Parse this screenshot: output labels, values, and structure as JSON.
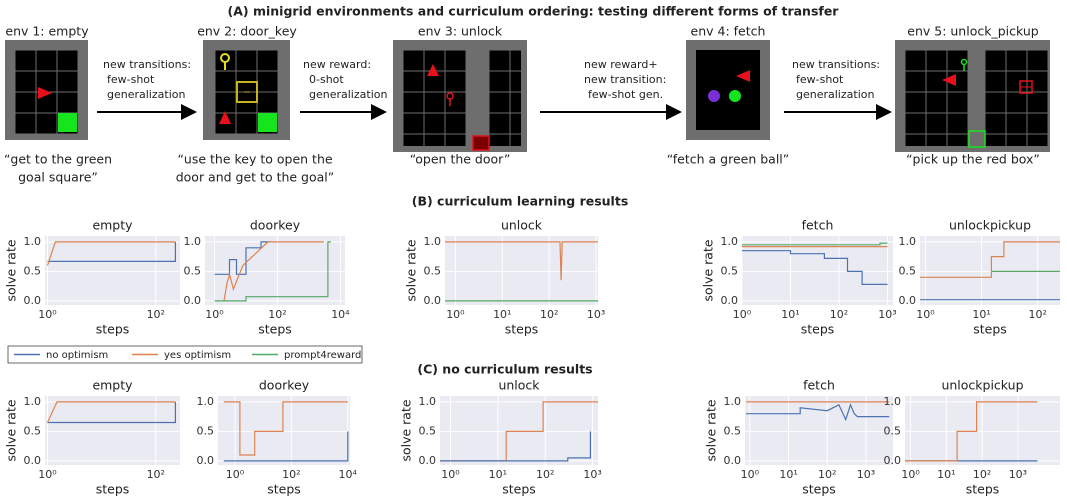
{
  "title": "(A) minigrid environments and curriculum ordering: testing different forms of transfer",
  "envs": [
    {
      "label": "env 1: empty",
      "quote": [
        "“get to the green",
        "goal square”"
      ]
    },
    {
      "label": "env 2: door_key",
      "quote": [
        "“use the key to open the",
        "door and get to the goal”"
      ]
    },
    {
      "label": "env 3: unlock",
      "quote": [
        "“open the door”"
      ]
    },
    {
      "label": "env 4: fetch",
      "quote": [
        "“fetch a green ball”"
      ]
    },
    {
      "label": "env 5: unlock_pickup",
      "quote": [
        "“pick up the red box”"
      ]
    }
  ],
  "transitions": [
    [
      "new transitions:",
      "few-shot",
      "generalization"
    ],
    [
      "new reward:",
      "0-shot",
      "generalization"
    ],
    [
      "new reward+",
      "new transition:",
      "few-shot gen."
    ],
    [
      "new transitions:",
      "few-shot",
      "generalization"
    ]
  ],
  "sections": [
    "(B) curriculum learning results",
    "(C) no curriculum results"
  ],
  "legend": [
    {
      "name": "no optimism",
      "color": "#4c72b0"
    },
    {
      "name": "yes optimism",
      "color": "#dd8452"
    },
    {
      "name": "prompt4reward",
      "color": "#55a868"
    }
  ],
  "chart_data": [
    {
      "type": "line",
      "title": "empty",
      "x_label": "steps",
      "y_label": "solve rate",
      "log_x": true,
      "grid": true,
      "xlim": [
        0.9,
        280
      ],
      "ylim": [
        -0.07,
        1.1
      ],
      "xticks": [
        {
          "value": 1,
          "label": "10⁰"
        },
        {
          "value": 100,
          "label": "10²"
        }
      ],
      "yticks": [
        {
          "value": 0,
          "label": "0.0"
        },
        {
          "value": 0.5,
          "label": "0.5"
        },
        {
          "value": 1,
          "label": "1.0"
        }
      ],
      "series": [
        {
          "color": "#4c72b0",
          "x": [
            1,
            230,
            230
          ],
          "values": [
            0.67,
            0.67,
            1.0
          ]
        },
        {
          "color": "#dd8452",
          "x": [
            1,
            1.4,
            230
          ],
          "values": [
            0.6,
            1.0,
            1.0
          ]
        }
      ]
    },
    {
      "type": "line",
      "title": "doorkey",
      "x_label": "steps",
      "log_x": true,
      "grid": true,
      "xlim": [
        0.5,
        14000
      ],
      "ylim": [
        -0.07,
        1.1
      ],
      "xticks": [
        {
          "value": 1,
          "label": "10⁰"
        },
        {
          "value": 100,
          "label": "10²"
        },
        {
          "value": 10000,
          "label": "10⁴"
        }
      ],
      "yticks": [
        {
          "value": 0,
          "label": "0.0"
        },
        {
          "value": 0.5,
          "label": "0.5"
        },
        {
          "value": 1,
          "label": "1.0"
        }
      ],
      "series": [
        {
          "color": "#4c72b0",
          "x": [
            1,
            3,
            3,
            5,
            5,
            10,
            10,
            30,
            30,
            60
          ],
          "values": [
            0.45,
            0.45,
            0.7,
            0.7,
            0.45,
            0.45,
            0.9,
            0.9,
            1.0,
            1.0
          ]
        },
        {
          "color": "#dd8452",
          "x": [
            2,
            2.5,
            3,
            4,
            8,
            20,
            50,
            3000
          ],
          "values": [
            0,
            0.3,
            0.45,
            0.2,
            0.6,
            0.8,
            1.0,
            1.0
          ]
        },
        {
          "color": "#55a868",
          "x": [
            1,
            10,
            10,
            4000,
            4000,
            5000
          ],
          "values": [
            0,
            0,
            0.07,
            0.07,
            1.0,
            1.0
          ]
        }
      ]
    },
    {
      "type": "line",
      "title": "unlock",
      "x_label": "steps",
      "y_label": "solve rate",
      "log_x": true,
      "grid": true,
      "xlim": [
        0.6,
        1100
      ],
      "ylim": [
        -0.07,
        1.1
      ],
      "xticks": [
        {
          "value": 1,
          "label": "10⁰"
        },
        {
          "value": 10,
          "label": "10¹"
        },
        {
          "value": 100,
          "label": "10²"
        },
        {
          "value": 1000,
          "label": "10³"
        }
      ],
      "yticks": [
        {
          "value": 0,
          "label": "0.0"
        },
        {
          "value": 0.5,
          "label": "0.5"
        },
        {
          "value": 1,
          "label": "1.0"
        }
      ],
      "series": [
        {
          "color": "#dd8452",
          "x": [
            0.6,
            170,
            180,
            190,
            1100
          ],
          "values": [
            1.0,
            1.0,
            0.35,
            1.0,
            1.0
          ]
        },
        {
          "color": "#55a868",
          "x": [
            0.6,
            1100
          ],
          "values": [
            0,
            0
          ]
        }
      ]
    },
    {
      "type": "line",
      "title": "fetch",
      "x_label": "steps",
      "y_label": "solve rate",
      "log_x": true,
      "grid": true,
      "xlim": [
        1,
        1300
      ],
      "ylim": [
        -0.07,
        1.1
      ],
      "xticks": [
        {
          "value": 1,
          "label": "10⁰"
        },
        {
          "value": 10,
          "label": "10¹"
        },
        {
          "value": 100,
          "label": "10²"
        },
        {
          "value": 1000,
          "label": "10³"
        }
      ],
      "yticks": [
        {
          "value": 0,
          "label": "0.0"
        },
        {
          "value": 0.5,
          "label": "0.5"
        },
        {
          "value": 1,
          "label": "1.0"
        }
      ],
      "series": [
        {
          "color": "#dd8452",
          "x": [
            1,
            1000
          ],
          "values": [
            0.92,
            0.92
          ]
        },
        {
          "color": "#55a868",
          "x": [
            1,
            700,
            700,
            1000
          ],
          "values": [
            0.95,
            0.95,
            0.98,
            0.98
          ]
        },
        {
          "color": "#4c72b0",
          "x": [
            1,
            10,
            10,
            50,
            50,
            150,
            150,
            300,
            300,
            1000
          ],
          "values": [
            0.85,
            0.85,
            0.8,
            0.8,
            0.72,
            0.72,
            0.5,
            0.5,
            0.28,
            0.28
          ]
        }
      ]
    },
    {
      "type": "line",
      "title": "unlockpickup",
      "x_label": "steps",
      "log_x": true,
      "grid": true,
      "xlim": [
        0.8,
        250
      ],
      "ylim": [
        -0.07,
        1.1
      ],
      "xticks": [
        {
          "value": 1,
          "label": "10⁰"
        },
        {
          "value": 10,
          "label": "10¹"
        },
        {
          "value": 100,
          "label": "10²"
        }
      ],
      "yticks": [
        {
          "value": 0,
          "label": "0.0"
        },
        {
          "value": 0.5,
          "label": "0.5"
        },
        {
          "value": 1,
          "label": "1.0"
        }
      ],
      "series": [
        {
          "color": "#4c72b0",
          "x": [
            0.8,
            250
          ],
          "values": [
            0.02,
            0.02
          ]
        },
        {
          "color": "#55a868",
          "x": [
            15,
            250
          ],
          "values": [
            0.5,
            0.5
          ]
        },
        {
          "color": "#dd8452",
          "x": [
            0.8,
            15,
            15,
            25,
            25,
            250
          ],
          "values": [
            0.4,
            0.4,
            0.75,
            0.75,
            1.0,
            1.0
          ]
        }
      ]
    },
    {
      "type": "line",
      "title": "empty",
      "x_label": "steps",
      "y_label": "solve rate",
      "log_x": true,
      "grid": true,
      "xlim": [
        0.9,
        280
      ],
      "ylim": [
        -0.07,
        1.1
      ],
      "xticks": [
        {
          "value": 1,
          "label": "10⁰"
        },
        {
          "value": 100,
          "label": "10²"
        }
      ],
      "yticks": [
        {
          "value": 0,
          "label": "0.0"
        },
        {
          "value": 0.5,
          "label": "0.5"
        },
        {
          "value": 1,
          "label": "1.0"
        }
      ],
      "series": [
        {
          "color": "#4c72b0",
          "x": [
            1,
            230,
            230
          ],
          "values": [
            0.65,
            0.65,
            1.0
          ]
        },
        {
          "color": "#dd8452",
          "x": [
            1,
            1.5,
            230
          ],
          "values": [
            0.65,
            1.0,
            1.0
          ]
        }
      ]
    },
    {
      "type": "line",
      "title": "doorkey",
      "x_label": "steps",
      "log_x": true,
      "grid": true,
      "xlim": [
        0.25,
        12000
      ],
      "ylim": [
        -0.07,
        1.1
      ],
      "xticks": [
        {
          "value": 1,
          "label": "10⁰"
        },
        {
          "value": 100,
          "label": "10²"
        },
        {
          "value": 10000,
          "label": "10⁴"
        }
      ],
      "yticks": [
        {
          "value": 0,
          "label": "0.0"
        },
        {
          "value": 0.5,
          "label": "0.5"
        },
        {
          "value": 1,
          "label": "1.0"
        }
      ],
      "series": [
        {
          "color": "#dd8452",
          "x": [
            0.4,
            1.5,
            1.5,
            5,
            5,
            50,
            50,
            10000
          ],
          "values": [
            1.0,
            1.0,
            0.1,
            0.1,
            0.5,
            0.5,
            1.0,
            1.0
          ]
        },
        {
          "color": "#4c72b0",
          "x": [
            0.4,
            10000,
            10000
          ],
          "values": [
            0,
            0,
            0.5
          ]
        }
      ]
    },
    {
      "type": "line",
      "title": "unlock",
      "x_label": "steps",
      "y_label": "solve rate",
      "log_x": true,
      "grid": true,
      "xlim": [
        0.6,
        1300
      ],
      "ylim": [
        -0.07,
        1.1
      ],
      "xticks": [
        {
          "value": 1,
          "label": "10⁰"
        },
        {
          "value": 10,
          "label": "10¹"
        },
        {
          "value": 100,
          "label": "10²"
        },
        {
          "value": 1000,
          "label": "10³"
        }
      ],
      "yticks": [
        {
          "value": 0,
          "label": "0.0"
        },
        {
          "value": 0.5,
          "label": "0.5"
        },
        {
          "value": 1,
          "label": "1.0"
        }
      ],
      "series": [
        {
          "color": "#dd8452",
          "x": [
            0.6,
            15,
            15,
            90,
            90,
            1300
          ],
          "values": [
            0,
            0,
            0.5,
            0.5,
            1.0,
            1.0
          ]
        },
        {
          "color": "#4c72b0",
          "x": [
            0.6,
            300,
            300,
            900,
            900
          ],
          "values": [
            0,
            0,
            0.05,
            0.05,
            0.5
          ]
        }
      ]
    },
    {
      "type": "line",
      "title": "fetch",
      "x_label": "steps",
      "y_label": "solve rate",
      "log_x": true,
      "grid": true,
      "xlim": [
        0.75,
        5000
      ],
      "ylim": [
        -0.07,
        1.1
      ],
      "xticks": [
        {
          "value": 1,
          "label": "10⁰"
        },
        {
          "value": 10,
          "label": "10¹"
        },
        {
          "value": 100,
          "label": "10²"
        },
        {
          "value": 1000,
          "label": "10³"
        }
      ],
      "yticks": [
        {
          "value": 0,
          "label": "0.0"
        },
        {
          "value": 0.5,
          "label": "0.5"
        },
        {
          "value": 1,
          "label": "1.0"
        }
      ],
      "series": [
        {
          "color": "#dd8452",
          "x": [
            0.8,
            4000
          ],
          "values": [
            1.0,
            1.0
          ]
        },
        {
          "color": "#4c72b0",
          "x": [
            0.8,
            20,
            20,
            100,
            200,
            300,
            400,
            500,
            600,
            1000,
            4000
          ],
          "values": [
            0.8,
            0.8,
            0.9,
            0.85,
            0.95,
            0.7,
            0.95,
            0.8,
            0.75,
            0.75,
            0.75
          ]
        }
      ]
    },
    {
      "type": "line",
      "title": "unlockpickup",
      "x_label": "steps",
      "log_x": true,
      "grid": true,
      "xlim": [
        0.7,
        15000
      ],
      "ylim": [
        -0.07,
        1.1
      ],
      "xticks": [
        {
          "value": 1,
          "label": "10⁰"
        },
        {
          "value": 10,
          "label": "10¹"
        },
        {
          "value": 100,
          "label": "10²"
        },
        {
          "value": 1000,
          "label": "10³"
        }
      ],
      "yticks": [
        {
          "value": 0,
          "label": "0.0"
        },
        {
          "value": 0.5,
          "label": "0.5"
        },
        {
          "value": 1,
          "label": "1.0"
        }
      ],
      "series": [
        {
          "color": "#4c72b0",
          "x": [
            0.7,
            3500
          ],
          "values": [
            0,
            0
          ]
        },
        {
          "color": "#dd8452",
          "x": [
            0.7,
            20,
            20,
            70,
            70,
            3500
          ],
          "values": [
            0,
            0,
            0.5,
            0.5,
            1.0,
            1.0
          ]
        }
      ]
    }
  ]
}
